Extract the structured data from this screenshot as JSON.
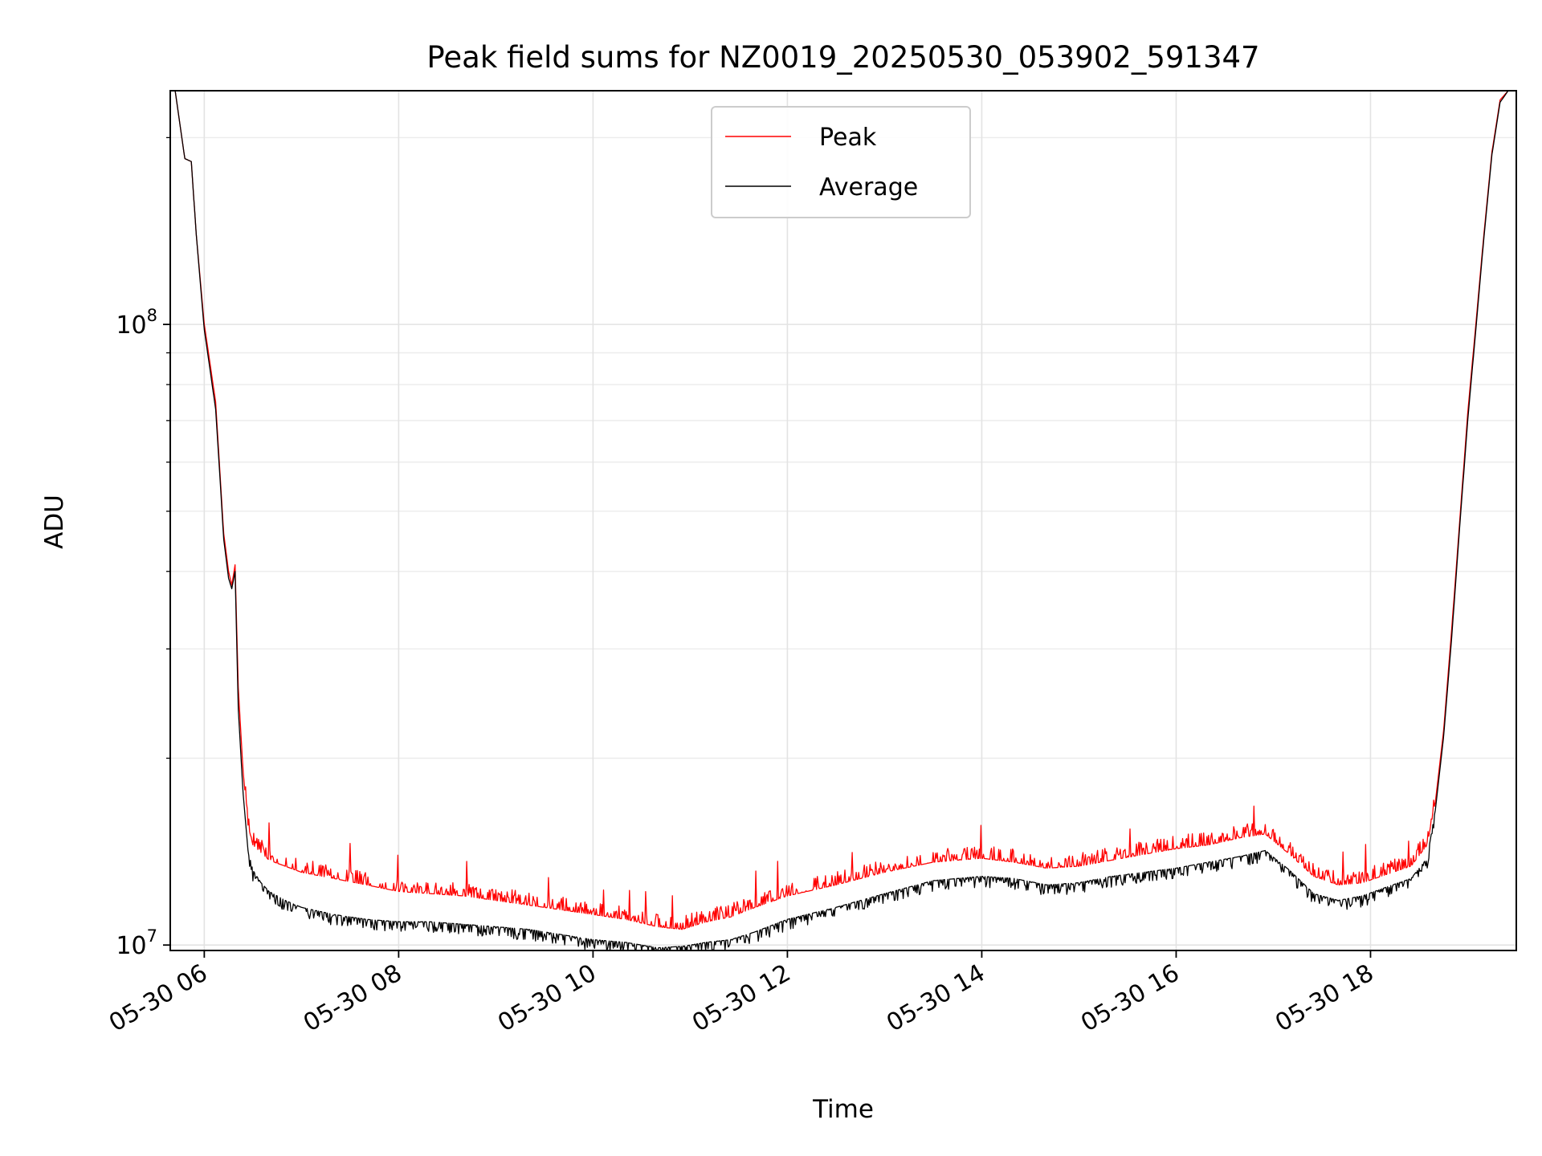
{
  "chart_data": {
    "type": "line",
    "title": "Peak field sums for NZ0019_20250530_053902_591347",
    "xlabel": "Time",
    "ylabel": "ADU",
    "yscale": "log",
    "ylim": [
      9800000,
      238000000
    ],
    "xlim": [
      "2025-05-30 05:39",
      "2025-05-30 19:30"
    ],
    "x_ticks": [
      "05-30 06",
      "05-30 08",
      "05-30 10",
      "05-30 12",
      "05-30 14",
      "05-30 16",
      "05-30 18"
    ],
    "y_ticks": [
      {
        "base": "10",
        "exp": "7",
        "value": 10000000
      },
      {
        "base": "10",
        "exp": "8",
        "value": 100000000
      }
    ],
    "grid": true,
    "legend_position": "upper center",
    "colors": {
      "peak": "#ff0000",
      "average": "#000000"
    },
    "series": [
      {
        "name": "Peak",
        "x": [
          "05:39",
          "05:42",
          "05:48",
          "05:52",
          "05:55",
          "06:00",
          "06:04",
          "06:07",
          "06:10",
          "06:12",
          "06:15",
          "06:17",
          "06:19",
          "06:21",
          "06:24",
          "06:27",
          "06:30",
          "06:35",
          "06:40",
          "06:50",
          "07:00",
          "07:20",
          "07:40",
          "08:00",
          "08:20",
          "08:40",
          "09:00",
          "09:20",
          "09:40",
          "10:00",
          "10:20",
          "10:40",
          "10:55",
          "11:10",
          "11:25",
          "11:40",
          "12:00",
          "12:30",
          "13:00",
          "13:30",
          "14:00",
          "14:20",
          "14:40",
          "15:00",
          "15:20",
          "15:40",
          "16:00",
          "16:20",
          "16:40",
          "16:55",
          "17:10",
          "17:25",
          "17:40",
          "17:55",
          "18:10",
          "18:25",
          "18:35",
          "18:40",
          "18:45",
          "18:50",
          "18:55",
          "19:00",
          "19:05",
          "19:10",
          "19:15",
          "19:20",
          "19:25",
          "19:30"
        ],
        "y": [
          238000000,
          238000000,
          185000000,
          183000000,
          140000000,
          100000000,
          85000000,
          75000000,
          56000000,
          46000000,
          40000000,
          38000000,
          41000000,
          26000000,
          19000000,
          15600000,
          14500000,
          14100000,
          13700000,
          13400000,
          13100000,
          12800000,
          12500000,
          12200000,
          12100000,
          12000000,
          11800000,
          11600000,
          11400000,
          11200000,
          11000000,
          10700000,
          10600000,
          10900000,
          11100000,
          11500000,
          12000000,
          12500000,
          13100000,
          13600000,
          13800000,
          13600000,
          13300000,
          13400000,
          13700000,
          14000000,
          14300000,
          14500000,
          14900000,
          15100000,
          14000000,
          12900000,
          12500000,
          12600000,
          13000000,
          13400000,
          14500000,
          17000000,
          22000000,
          32000000,
          48000000,
          72000000,
          100000000,
          140000000,
          190000000,
          230000000,
          238000000,
          238000000
        ]
      },
      {
        "name": "Average",
        "x": [
          "05:39",
          "05:42",
          "05:48",
          "05:52",
          "05:55",
          "06:00",
          "06:04",
          "06:07",
          "06:10",
          "06:12",
          "06:15",
          "06:17",
          "06:19",
          "06:21",
          "06:24",
          "06:27",
          "06:30",
          "06:35",
          "06:40",
          "06:50",
          "07:00",
          "07:20",
          "07:40",
          "08:00",
          "08:20",
          "08:40",
          "09:00",
          "09:20",
          "09:40",
          "10:00",
          "10:20",
          "10:40",
          "10:55",
          "11:10",
          "11:25",
          "11:40",
          "12:00",
          "12:30",
          "13:00",
          "13:30",
          "14:00",
          "14:20",
          "14:40",
          "15:00",
          "15:20",
          "15:40",
          "16:00",
          "16:20",
          "16:40",
          "16:55",
          "17:10",
          "17:25",
          "17:40",
          "17:55",
          "18:10",
          "18:25",
          "18:35",
          "18:40",
          "18:45",
          "18:50",
          "18:55",
          "19:00",
          "19:05",
          "19:10",
          "19:15",
          "19:20",
          "19:25",
          "19:30"
        ],
        "y": [
          238000000,
          238000000,
          185000000,
          183000000,
          140000000,
          98000000,
          83000000,
          73000000,
          55000000,
          45000000,
          39000000,
          37500000,
          40000000,
          24000000,
          17500000,
          14200000,
          13200000,
          12600000,
          12200000,
          11800000,
          11500000,
          11200000,
          11000000,
          10900000,
          10900000,
          10800000,
          10700000,
          10600000,
          10400000,
          10200000,
          10100000,
          9900000,
          9950000,
          10100000,
          10200000,
          10500000,
          11000000,
          11500000,
          12100000,
          12700000,
          12900000,
          12800000,
          12500000,
          12600000,
          12900000,
          13100000,
          13300000,
          13600000,
          13900000,
          14200000,
          13200000,
          12100000,
          11800000,
          12000000,
          12400000,
          12800000,
          13800000,
          16500000,
          21500000,
          31000000,
          47000000,
          70000000,
          98000000,
          138000000,
          188000000,
          228000000,
          238000000,
          238000000
        ]
      }
    ]
  }
}
